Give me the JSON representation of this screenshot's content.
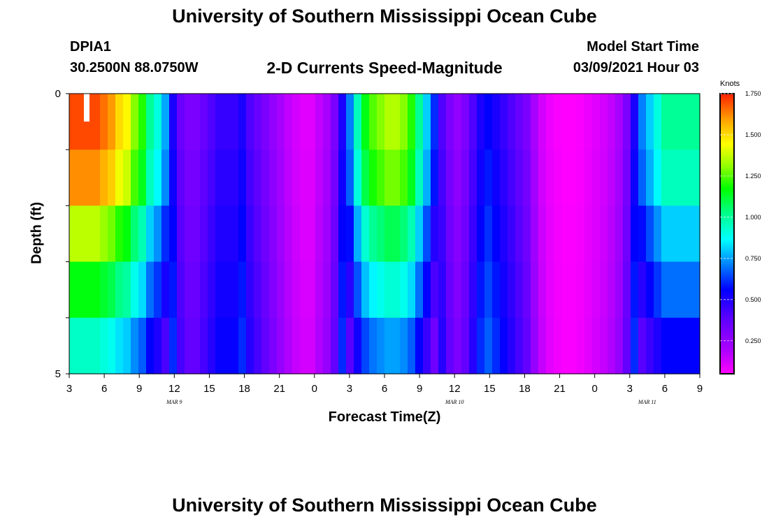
{
  "header": {
    "title": "University of Southern Mississippi Ocean Cube",
    "station": "DPIA1",
    "coords": "30.2500N 88.0750W",
    "subtitle": "2-D Currents Speed-Magnitude",
    "model_label": "Model Start Time",
    "model_time": "03/09/2021 Hour 03"
  },
  "footer": {
    "title": "University of Southern Mississippi Ocean Cube"
  },
  "chart_data": {
    "type": "heatmap",
    "xlabel": "Forecast Time(Z)",
    "ylabel": "Depth (ft)",
    "y_tick_labels": [
      "0",
      "5"
    ],
    "ylim": [
      0,
      5
    ],
    "x_tick_labels": [
      "3",
      "6",
      "9",
      "12",
      "15",
      "18",
      "21",
      "0",
      "3",
      "6",
      "9",
      "12",
      "15",
      "18",
      "21",
      "0",
      "3",
      "6",
      "9"
    ],
    "date_labels": [
      {
        "text": "MAR  9",
        "tick_index": 3
      },
      {
        "text": "MAR  10",
        "tick_index": 11
      },
      {
        "text": "MAR  11",
        "tick_index": 16.5
      }
    ],
    "colorbar": {
      "title": "Knots",
      "ticks": [
        "1.750",
        "1.500",
        "1.250",
        "1.000",
        "0.750",
        "0.500",
        "0.250"
      ],
      "tick_values": [
        1.75,
        1.5,
        1.25,
        1.0,
        0.75,
        0.5,
        0.25
      ],
      "range": [
        0.05,
        1.75
      ]
    },
    "time_hours_start": 3,
    "time_hours_step": 1,
    "layers": 5,
    "speed_profile_surface": [
      1.7,
      1.7,
      1.7,
      1.7,
      1.65,
      1.6,
      1.5,
      1.45,
      1.3,
      1.2,
      1.0,
      0.9,
      0.75,
      0.5,
      0.35,
      0.3,
      0.3,
      0.35,
      0.4,
      0.45,
      0.45,
      0.45,
      0.5,
      0.4,
      0.35,
      0.3,
      0.25,
      0.2,
      0.15,
      0.12,
      0.1,
      0.1,
      0.15,
      0.2,
      0.3,
      0.5,
      0.7,
      0.95,
      1.15,
      1.25,
      1.3,
      1.35,
      1.35,
      1.3,
      1.2,
      1.0,
      0.8,
      0.6,
      0.4,
      0.3,
      0.25,
      0.3,
      0.4,
      0.5,
      0.55,
      0.5,
      0.45,
      0.4,
      0.35,
      0.3,
      0.2,
      0.12,
      0.08,
      0.06,
      0.05,
      0.05,
      0.06,
      0.08,
      0.1,
      0.12,
      0.15,
      0.2,
      0.3,
      0.5,
      0.7,
      0.8,
      0.9,
      1.0,
      1.0,
      1.0,
      1.0,
      1.0
    ],
    "layer_scale": [
      1.0,
      0.95,
      0.8,
      0.68,
      0.55
    ]
  }
}
